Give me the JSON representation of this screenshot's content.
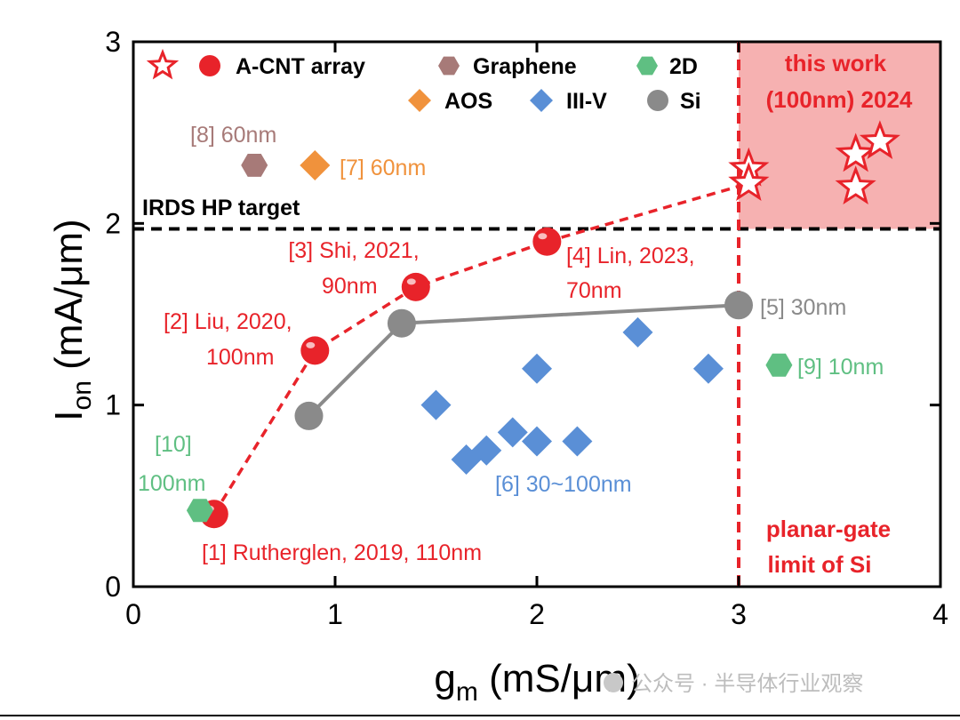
{
  "chart_data": {
    "type": "scatter",
    "xlabel": {
      "main": "g",
      "sub": "m",
      "unit": " (mS/μm)"
    },
    "ylabel": {
      "main": "I",
      "sub": "on",
      "unit": " (mA/μm)"
    },
    "xlim": [
      0,
      4
    ],
    "ylim": [
      0,
      3
    ],
    "xticks": [
      "0",
      "1",
      "2",
      "3",
      "4"
    ],
    "yticks": [
      "0",
      "1",
      "2",
      "3"
    ],
    "grid": false,
    "legend_position": "top",
    "legend": [
      {
        "label": "A-CNT array",
        "marker": "star-and-circle",
        "color": "#e8232a"
      },
      {
        "label": "Graphene",
        "marker": "hexagon",
        "color": "#a77a78"
      },
      {
        "label": "2D",
        "marker": "hexagon",
        "color": "#5fbf82"
      },
      {
        "label": "AOS",
        "marker": "diamond",
        "color": "#f0923c"
      },
      {
        "label": "III-V",
        "marker": "diamond",
        "color": "#5a8fd6"
      },
      {
        "label": "Si",
        "marker": "circle",
        "color": "#8a8a8a"
      }
    ],
    "series": [
      {
        "name": "A-CNT array",
        "marker": "circle",
        "color": "#e8232a",
        "connected": "dashed",
        "points": [
          [
            0.4,
            0.4
          ],
          [
            0.9,
            1.3
          ],
          [
            1.4,
            1.65
          ],
          [
            2.05,
            1.9
          ]
        ]
      },
      {
        "name": "A-CNT array (this work)",
        "marker": "star",
        "color": "#e8232a",
        "points": [
          [
            3.05,
            2.3
          ],
          [
            3.05,
            2.22
          ],
          [
            3.58,
            2.38
          ],
          [
            3.58,
            2.2
          ],
          [
            3.7,
            2.45
          ]
        ]
      },
      {
        "name": "Si",
        "marker": "circle",
        "color": "#8a8a8a",
        "connected": "solid",
        "points": [
          [
            0.87,
            0.94
          ],
          [
            1.33,
            1.45
          ],
          [
            3.0,
            1.55
          ]
        ]
      },
      {
        "name": "III-V",
        "marker": "diamond",
        "color": "#5a8fd6",
        "points": [
          [
            1.5,
            1.0
          ],
          [
            1.65,
            0.7
          ],
          [
            1.75,
            0.75
          ],
          [
            1.88,
            0.85
          ],
          [
            2.0,
            0.8
          ],
          [
            2.0,
            1.2
          ],
          [
            2.2,
            0.8
          ],
          [
            2.5,
            1.4
          ],
          [
            2.85,
            1.2
          ]
        ]
      },
      {
        "name": "Graphene",
        "marker": "hexagon",
        "color": "#a77a78",
        "points": [
          [
            0.6,
            2.32
          ]
        ]
      },
      {
        "name": "AOS",
        "marker": "diamond",
        "color": "#f0923c",
        "points": [
          [
            0.9,
            2.32
          ]
        ]
      },
      {
        "name": "2D",
        "marker": "hexagon",
        "color": "#5fbf82",
        "points": [
          [
            0.33,
            0.42
          ],
          [
            3.2,
            1.22
          ]
        ]
      }
    ],
    "dashed_connector_to_this_work": [
      [
        2.05,
        1.9
      ],
      [
        3.05,
        2.22
      ]
    ],
    "reference_lines": [
      {
        "orientation": "horizontal",
        "value": 1.97,
        "style": "dashed",
        "color": "#000000",
        "label": "IRDS HP target"
      },
      {
        "orientation": "vertical",
        "value": 3.0,
        "style": "dashed",
        "color": "#e8232a",
        "label_lines": [
          "planar-gate",
          "limit of Si"
        ]
      }
    ],
    "highlight_region": {
      "x": [
        3.0,
        4.0
      ],
      "y": [
        1.97,
        3.0
      ],
      "color": "#f6b1b1",
      "label_lines": [
        "this work",
        "(100nm) 2024"
      ]
    },
    "annotations": [
      {
        "lines": [
          "[8] 60nm"
        ],
        "color": "#a77a78"
      },
      {
        "lines": [
          "[7] 60nm"
        ],
        "color": "#f0923c"
      },
      {
        "lines": [
          "[3] Shi, 2021,",
          "90nm"
        ],
        "color": "#e8232a"
      },
      {
        "lines": [
          "[4] Lin, 2023,",
          "70nm"
        ],
        "color": "#e8232a"
      },
      {
        "lines": [
          "[5] 30nm"
        ],
        "color": "#8a8a8a"
      },
      {
        "lines": [
          "[2] Liu, 2020,",
          "100nm"
        ],
        "color": "#e8232a"
      },
      {
        "lines": [
          "[9] 10nm"
        ],
        "color": "#5fbf82"
      },
      {
        "lines": [
          "[10]",
          "100nm"
        ],
        "color": "#5fbf82"
      },
      {
        "lines": [
          "[6] 30~100nm"
        ],
        "color": "#5a8fd6"
      },
      {
        "lines": [
          "[1] Rutherglen, 2019, 110nm"
        ],
        "color": "#e8232a"
      }
    ],
    "watermark": "公众号 · 半导体行业观察"
  }
}
